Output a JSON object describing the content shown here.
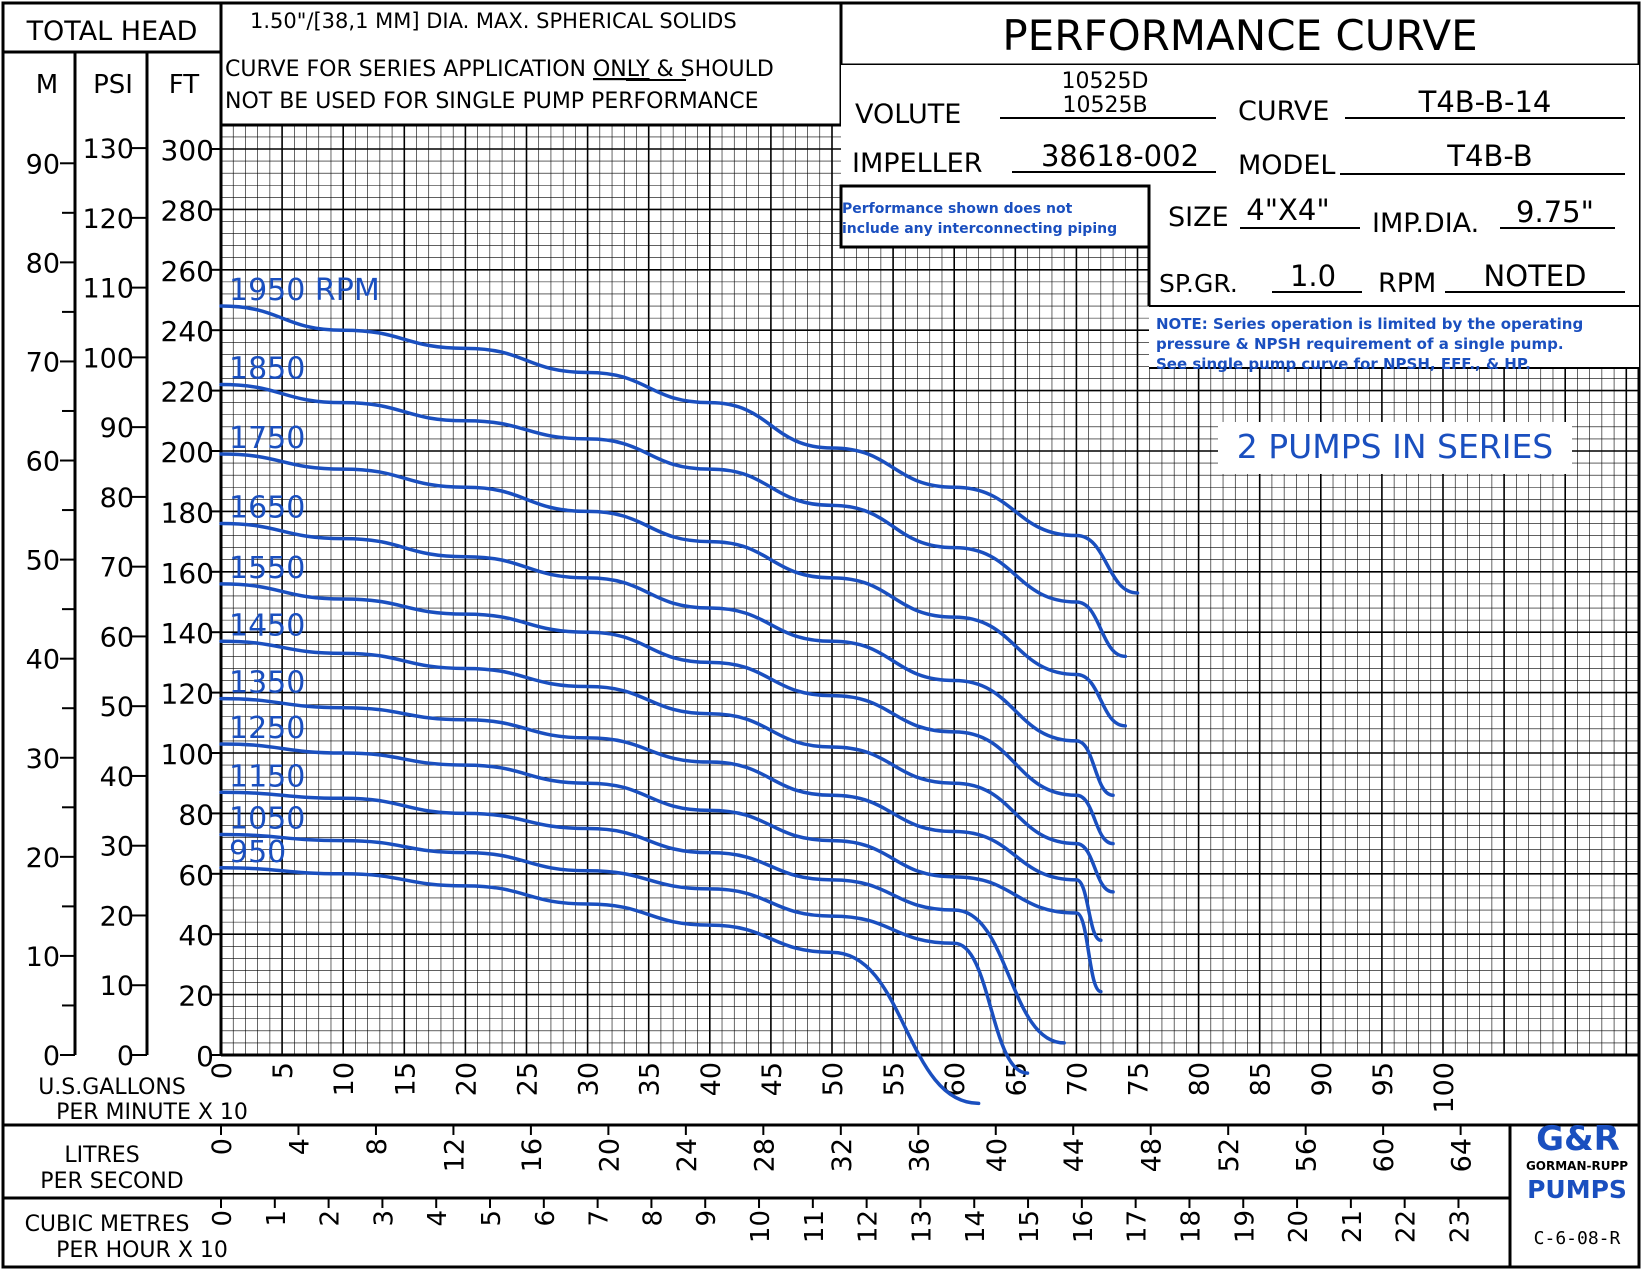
{
  "header": {
    "total_head": "TOTAL HEAD",
    "unit_m": "M",
    "unit_psi": "PSI",
    "unit_ft": "FT",
    "solids": "1.50\"/[38,1 MM] DIA. MAX. SPHERICAL SOLIDS",
    "series_note_1a": "CURVE FOR SERIES APPLICATION",
    "series_note_1b": "ONLY",
    "series_note_1c": "& SHOULD",
    "series_note_2": "NOT BE USED FOR SINGLE PUMP PERFORMANCE",
    "title": "PERFORMANCE CURVE"
  },
  "specs": {
    "volute_label": "VOLUTE",
    "volute_value_1": "10525D",
    "volute_value_2": "10525B",
    "curve_label": "CURVE",
    "curve_value": "T4B-B-14",
    "impeller_label": "IMPELLER",
    "impeller_value": "38618-002",
    "model_label": "MODEL",
    "model_value": "T4B-B",
    "size_label": "SIZE",
    "size_value": "4\"X4\"",
    "impdia_label": "IMP.DIA.",
    "impdia_value": "9.75\"",
    "spgr_label": "SP.GR.",
    "spgr_value": "1.0",
    "rpm_label": "RPM",
    "rpm_value": "NOTED",
    "piping_note_1": "Performance shown does not",
    "piping_note_2": "include any interconnecting piping",
    "series_limit_1": "NOTE: Series operation is limited by the operating",
    "series_limit_2": "pressure & NPSH requirement of a single pump.",
    "series_limit_3": "See single pump curve for NPSH, EFF., & HP.",
    "pumps_label": "2 PUMPS IN SERIES"
  },
  "axes": {
    "gpm_label_1": "U.S.GALLONS",
    "gpm_label_2": "PER MINUTE X 10",
    "lps_label_1": "LITRES",
    "lps_label_2": "PER SECOND",
    "cmh_label_1": "CUBIC METRES",
    "cmh_label_2": "PER HOUR X 10",
    "ft_ticks": [
      "0",
      "20",
      "40",
      "60",
      "80",
      "100",
      "120",
      "140",
      "160",
      "180",
      "200",
      "220",
      "240",
      "260",
      "280",
      "300"
    ],
    "m_ticks": [
      "0",
      "10",
      "20",
      "30",
      "40",
      "50",
      "60",
      "70",
      "80",
      "90"
    ],
    "psi_ticks": [
      "0",
      "10",
      "20",
      "30",
      "40",
      "50",
      "60",
      "70",
      "80",
      "90",
      "100",
      "110",
      "120",
      "130"
    ],
    "gpm_ticks": [
      "0",
      "5",
      "10",
      "15",
      "20",
      "25",
      "30",
      "35",
      "40",
      "45",
      "50",
      "55",
      "60",
      "65",
      "70",
      "75",
      "80",
      "85",
      "90",
      "95",
      "100"
    ],
    "lps_ticks": [
      "0",
      "4",
      "8",
      "12",
      "16",
      "20",
      "24",
      "28",
      "32",
      "36",
      "40",
      "44",
      "48",
      "52",
      "56",
      "60",
      "64"
    ],
    "cmh_ticks": [
      "0",
      "1",
      "2",
      "3",
      "4",
      "5",
      "6",
      "7",
      "8",
      "9",
      "10",
      "11",
      "12",
      "13",
      "14",
      "15",
      "16",
      "17",
      "18",
      "19",
      "20",
      "21",
      "22",
      "23"
    ]
  },
  "logo": {
    "mark": "G&R",
    "name": "GORMAN-RUPP",
    "pumps": "PUMPS",
    "code": "C-6-08-R"
  },
  "colors": {
    "curve": "#1a4fbf",
    "grid": "#000000"
  },
  "chart_data": {
    "type": "line",
    "xlabel": "U.S.GALLONS PER MINUTE X 10",
    "ylabel": "TOTAL HEAD (FT)",
    "xlim": [
      0,
      105
    ],
    "ylim": [
      0,
      300
    ],
    "grid": true,
    "series": [
      {
        "name": "1950 RPM",
        "x": [
          0,
          10,
          20,
          30,
          40,
          50,
          60,
          70,
          75
        ],
        "y": [
          248,
          240,
          234,
          226,
          216,
          201,
          188,
          172,
          153
        ]
      },
      {
        "name": "1850",
        "x": [
          0,
          10,
          20,
          30,
          40,
          50,
          60,
          70,
          74
        ],
        "y": [
          222,
          216,
          210,
          204,
          194,
          182,
          168,
          150,
          132
        ]
      },
      {
        "name": "1750",
        "x": [
          0,
          10,
          20,
          30,
          40,
          50,
          60,
          70,
          74
        ],
        "y": [
          199,
          194,
          188,
          180,
          170,
          158,
          145,
          126,
          109
        ]
      },
      {
        "name": "1650",
        "x": [
          0,
          10,
          20,
          30,
          40,
          50,
          60,
          70,
          73
        ],
        "y": [
          176,
          171,
          165,
          158,
          148,
          137,
          124,
          104,
          86
        ]
      },
      {
        "name": "1550",
        "x": [
          0,
          10,
          20,
          30,
          40,
          50,
          60,
          70,
          73
        ],
        "y": [
          156,
          151,
          146,
          140,
          130,
          119,
          107,
          86,
          70
        ]
      },
      {
        "name": "1450",
        "x": [
          0,
          10,
          20,
          30,
          40,
          50,
          60,
          70,
          73
        ],
        "y": [
          137,
          133,
          128,
          122,
          113,
          102,
          90,
          70,
          54
        ]
      },
      {
        "name": "1350",
        "x": [
          0,
          10,
          20,
          30,
          40,
          50,
          60,
          70,
          72
        ],
        "y": [
          118,
          115,
          111,
          105,
          97,
          86,
          74,
          58,
          38
        ]
      },
      {
        "name": "1250",
        "x": [
          0,
          10,
          20,
          30,
          40,
          50,
          60,
          70,
          72
        ],
        "y": [
          103,
          100,
          96,
          90,
          81,
          71,
          59,
          47,
          21
        ]
      },
      {
        "name": "1150",
        "x": [
          0,
          10,
          20,
          30,
          40,
          50,
          60,
          69
        ],
        "y": [
          87,
          85,
          80,
          75,
          67,
          58,
          48,
          4
        ]
      },
      {
        "name": "1050",
        "x": [
          0,
          10,
          20,
          30,
          40,
          50,
          60,
          66
        ],
        "y": [
          73,
          71,
          67,
          61,
          55,
          46,
          37,
          -6
        ]
      },
      {
        "name": "950",
        "x": [
          0,
          10,
          20,
          30,
          40,
          50,
          62
        ],
        "y": [
          62,
          60,
          56,
          50,
          43,
          34,
          -16
        ]
      }
    ]
  }
}
